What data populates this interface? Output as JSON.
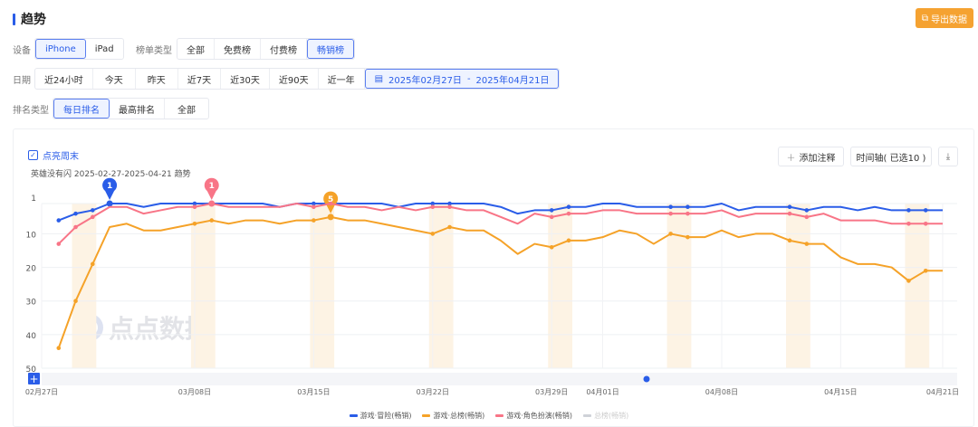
{
  "header": {
    "title": "趋势",
    "export_label": "导出数据",
    "export_icon": "export-icon"
  },
  "filters": {
    "device": {
      "label": "设备",
      "options": [
        "iPhone",
        "iPad"
      ],
      "selected": "iPhone"
    },
    "chart_type": {
      "label": "榜单类型",
      "options": [
        "全部",
        "免费榜",
        "付费榜",
        "畅销榜"
      ],
      "selected": "畅销榜"
    },
    "date": {
      "label": "日期",
      "options": [
        "近24小时",
        "今天",
        "昨天",
        "近7天",
        "近30天",
        "近90天",
        "近一年"
      ],
      "range_start": "2025年02月27日",
      "range_sep": "-",
      "range_end": "2025年04月21日"
    },
    "rank_type": {
      "label": "排名类型",
      "options": [
        "每日排名",
        "最高排名",
        "全部"
      ],
      "selected": "每日排名"
    }
  },
  "chart_card": {
    "highlight_weekend_label": "点亮周末",
    "highlight_weekend_checked": true,
    "subtitle": "英雄没有闪 2025-02-27-2025-04-21 趋势",
    "add_note_label": "添加注释",
    "timeline_label": "时间轴( 已选10 )",
    "download_icon": "download-icon",
    "watermark": "点点数据"
  },
  "chart_data": {
    "type": "line",
    "y_inverted": true,
    "ylim": [
      1,
      50
    ],
    "y_ticks": [
      "1",
      "10",
      "20",
      "30",
      "40",
      "50"
    ],
    "x_range": [
      "2025-02-27",
      "2025-04-21"
    ],
    "x_tick_labels": [
      {
        "date": "2025-02-27",
        "label": "02月27日"
      },
      {
        "date": "2025-03-08",
        "label": "03月08日"
      },
      {
        "date": "2025-03-15",
        "label": "03月15日"
      },
      {
        "date": "2025-03-22",
        "label": "03月22日"
      },
      {
        "date": "2025-03-29",
        "label": "03月29日"
      },
      {
        "date": "2025-04-01",
        "label": "04月01日"
      },
      {
        "date": "2025-04-08",
        "label": "04月08日"
      },
      {
        "date": "2025-04-15",
        "label": "04月15日"
      },
      {
        "date": "2025-04-21",
        "label": "04月21日"
      }
    ],
    "x_start": "2025-02-28",
    "weekend_highlight": true,
    "grid": true,
    "legend_position": "bottom",
    "series": [
      {
        "name": "游戏·冒险(畅销)",
        "color": "#2a5de8",
        "values": [
          6,
          4,
          3,
          1,
          1,
          2,
          1,
          1,
          1,
          1,
          1,
          1,
          1,
          2,
          1,
          1,
          1,
          1,
          1,
          1,
          2,
          1,
          1,
          1,
          1,
          1,
          2,
          4,
          3,
          3,
          2,
          2,
          1,
          1,
          2,
          2,
          2,
          2,
          2,
          1,
          3,
          2,
          2,
          2,
          3,
          2,
          2,
          3,
          2,
          3,
          3,
          3,
          3
        ],
        "marker": {
          "date": "2025-03-03",
          "label": "1"
        }
      },
      {
        "name": "游戏·总榜(畅销)",
        "color": "#f5a228",
        "values": [
          44,
          30,
          19,
          8,
          7,
          9,
          9,
          8,
          7,
          6,
          7,
          6,
          6,
          7,
          6,
          6,
          5,
          6,
          6,
          7,
          8,
          9,
          10,
          8,
          9,
          9,
          12,
          16,
          13,
          14,
          12,
          12,
          11,
          9,
          10,
          13,
          10,
          11,
          11,
          9,
          11,
          10,
          10,
          12,
          13,
          13,
          17,
          19,
          19,
          20,
          24,
          21,
          21
        ],
        "marker": {
          "date": "2025-03-16",
          "label": "5"
        }
      },
      {
        "name": "游戏·角色扮演(畅销)",
        "color": "#f87587",
        "values": [
          13,
          8,
          5,
          2,
          2,
          4,
          3,
          2,
          2,
          1,
          2,
          2,
          2,
          2,
          1,
          2,
          1,
          2,
          2,
          3,
          2,
          3,
          2,
          2,
          3,
          3,
          5,
          7,
          4,
          5,
          4,
          4,
          3,
          3,
          4,
          4,
          4,
          4,
          4,
          3,
          5,
          4,
          4,
          4,
          5,
          4,
          6,
          6,
          6,
          7,
          7,
          7,
          7
        ],
        "marker": {
          "date": "2025-03-09",
          "label": "1"
        }
      },
      {
        "name": "总榜(畅销)",
        "color": "#cfd2d8",
        "hidden": true,
        "values": []
      }
    ]
  }
}
